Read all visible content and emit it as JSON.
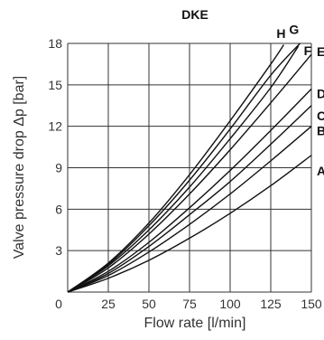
{
  "chart_data": {
    "type": "line",
    "title": "DKE",
    "xlabel": "Flow rate [l/min]",
    "ylabel": "Valve pressure drop Δp [bar]",
    "xlim": [
      0,
      150
    ],
    "ylim": [
      0,
      18
    ],
    "xticks": [
      0,
      25,
      50,
      75,
      100,
      125,
      150
    ],
    "yticks": [
      0,
      3,
      6,
      9,
      12,
      15,
      18
    ],
    "grid": true,
    "legend": "none",
    "line_color": "#111111",
    "series": [
      {
        "name": "A",
        "x": [
          0,
          25,
          50,
          75,
          100,
          125,
          150
        ],
        "y": [
          0,
          1.0,
          2.3,
          3.9,
          5.7,
          7.7,
          9.9
        ]
      },
      {
        "name": "B",
        "x": [
          0,
          25,
          50,
          75,
          100,
          125,
          150
        ],
        "y": [
          0,
          1.2,
          2.9,
          4.9,
          7.1,
          9.5,
          12.0
        ]
      },
      {
        "name": "C",
        "x": [
          0,
          25,
          50,
          75,
          100,
          125,
          150
        ],
        "y": [
          0,
          1.35,
          3.3,
          5.6,
          8.0,
          10.7,
          13.5
        ]
      },
      {
        "name": "D",
        "x": [
          0,
          25,
          50,
          75,
          100,
          125,
          150
        ],
        "y": [
          0,
          1.5,
          3.6,
          6.1,
          8.8,
          11.7,
          14.7
        ]
      },
      {
        "name": "E",
        "x": [
          0,
          25,
          50,
          75,
          100,
          125,
          150
        ],
        "y": [
          0,
          1.75,
          4.2,
          7.1,
          10.3,
          13.7,
          17.2
        ]
      },
      {
        "name": "F",
        "x": [
          0,
          25,
          50,
          75,
          100,
          125,
          142
        ],
        "y": [
          0,
          1.9,
          4.5,
          7.6,
          11.1,
          14.8,
          17.8
        ]
      },
      {
        "name": "G",
        "x": [
          0,
          25,
          50,
          75,
          100,
          125,
          133
        ],
        "y": [
          0,
          2.1,
          5.0,
          8.5,
          12.4,
          16.5,
          17.9
        ]
      },
      {
        "name": "H",
        "x": [
          0,
          25,
          50,
          75,
          100,
          125,
          143
        ],
        "y": [
          0,
          2.0,
          4.8,
          8.1,
          11.8,
          15.7,
          18.0
        ]
      }
    ],
    "labels": [
      {
        "text": "H",
        "series": "H"
      },
      {
        "text": "G",
        "series": "G"
      },
      {
        "text": "F",
        "series": "F"
      },
      {
        "text": "E",
        "series": "E"
      },
      {
        "text": "D",
        "series": "D"
      },
      {
        "text": "C",
        "series": "C"
      },
      {
        "text": "B",
        "series": "B"
      },
      {
        "text": "A",
        "series": "A"
      }
    ]
  }
}
